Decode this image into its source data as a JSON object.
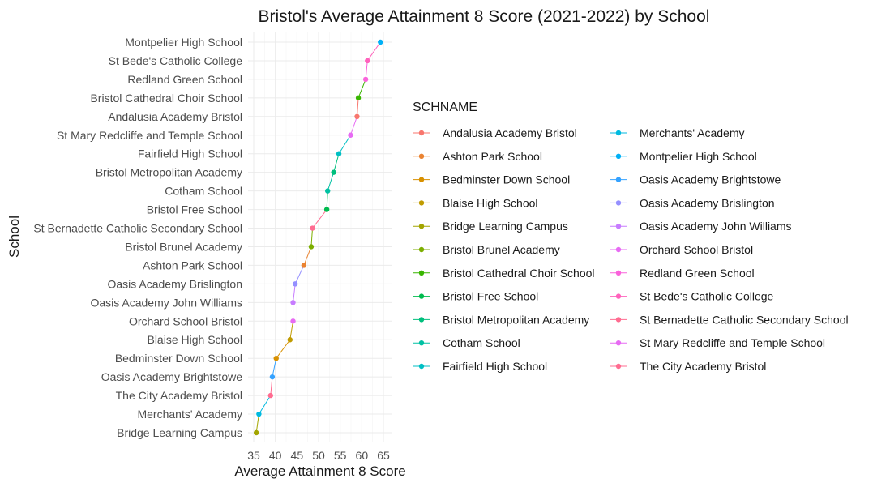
{
  "chart_data": {
    "type": "line",
    "title": "Bristol's Average Attainment 8 Score (2021-2022) by School",
    "xlabel": "Average Attainment 8 Score",
    "ylabel": "School",
    "xlim": [
      35,
      65
    ],
    "xticks": [
      "35",
      "40",
      "45",
      "50",
      "55",
      "60",
      "65"
    ],
    "grid": true,
    "legend_title": "SCHNAME",
    "legend_position": "right",
    "categories": [
      "Bridge Learning Campus",
      "Merchants' Academy",
      "The City Academy Bristol",
      "Oasis Academy Brightstowe",
      "Bedminster Down School",
      "Blaise High School",
      "Orchard School Bristol",
      "Oasis Academy John Williams",
      "Oasis Academy Brislington",
      "Ashton Park School",
      "Bristol Brunel Academy",
      "St Bernadette Catholic Secondary School",
      "Bristol Free School",
      "Cotham School",
      "Bristol Metropolitan Academy",
      "Fairfield High School",
      "St Mary Redcliffe and Temple School",
      "Andalusia Academy Bristol",
      "Bristol Cathedral Choir School",
      "Redland Green School",
      "St Bede's Catholic College",
      "Montpelier High School"
    ],
    "values": [
      35.6,
      36.2,
      38.9,
      39.3,
      40.2,
      43.4,
      44.1,
      44.1,
      44.6,
      46.6,
      48.3,
      48.6,
      51.9,
      52.1,
      53.5,
      54.7,
      57.4,
      58.9,
      59.2,
      60.9,
      61.3,
      64.3
    ],
    "legend_entries": [
      {
        "name": "Andalusia Academy Bristol",
        "color": "#F8766D"
      },
      {
        "name": "Ashton Park School",
        "color": "#EA8331"
      },
      {
        "name": "Bedminster Down School",
        "color": "#D89000"
      },
      {
        "name": "Blaise High School",
        "color": "#C09B00"
      },
      {
        "name": "Bridge Learning Campus",
        "color": "#A3A500"
      },
      {
        "name": "Bristol Brunel Academy",
        "color": "#7CAE00"
      },
      {
        "name": "Bristol Cathedral Choir School",
        "color": "#39B600"
      },
      {
        "name": "Bristol Free School",
        "color": "#00BB4E"
      },
      {
        "name": "Bristol Metropolitan Academy",
        "color": "#00BF7D"
      },
      {
        "name": "Cotham School",
        "color": "#00C1A3"
      },
      {
        "name": "Fairfield High School",
        "color": "#00BFC4"
      },
      {
        "name": "Merchants' Academy",
        "color": "#00BAE0"
      },
      {
        "name": "Montpelier High School",
        "color": "#00B0F6"
      },
      {
        "name": "Oasis Academy Brightstowe",
        "color": "#35A2FF"
      },
      {
        "name": "Oasis Academy Brislington",
        "color": "#9590FF"
      },
      {
        "name": "Oasis Academy John Williams",
        "color": "#C77CFF"
      },
      {
        "name": "Orchard School Bristol",
        "color": "#E76BF3"
      },
      {
        "name": "Redland Green School",
        "color": "#FA62DB"
      },
      {
        "name": "St Bede's Catholic College",
        "color": "#FF62BC"
      },
      {
        "name": "St Bernadette Catholic Secondary School",
        "color": "#FF6C91"
      },
      {
        "name": "St Mary Redcliffe and Temple School",
        "color": "#E76BF3"
      },
      {
        "name": "The City Academy Bristol",
        "color": "#FF6C91"
      }
    ]
  }
}
